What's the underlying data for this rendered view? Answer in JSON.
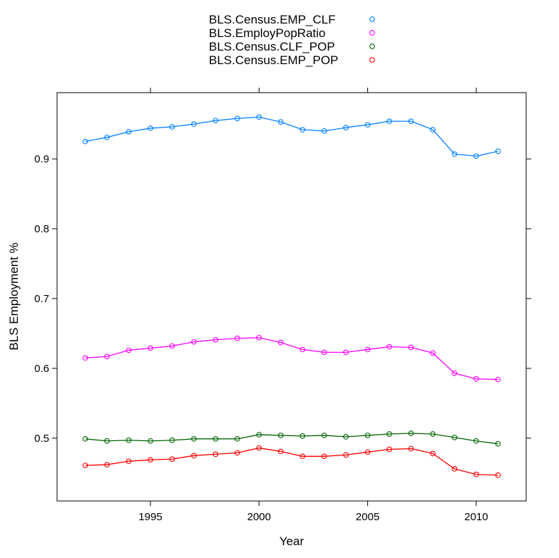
{
  "chart_data": {
    "type": "line",
    "title": "",
    "xlabel": "Year",
    "ylabel": "BLS Employment %",
    "xlim": [
      1990.7,
      2012.3
    ],
    "ylim": [
      0.41,
      0.995
    ],
    "x_ticks": [
      1995,
      2000,
      2005,
      2010
    ],
    "x_tick_labels": [
      "1995",
      "2000",
      "2005",
      "2010"
    ],
    "y_ticks": [
      0.5,
      0.6,
      0.7,
      0.8,
      0.9
    ],
    "y_tick_labels": [
      "0.5",
      "0.6",
      "0.7",
      "0.8",
      "0.9"
    ],
    "legend_position": "top-center",
    "x": [
      1992,
      1993,
      1994,
      1995,
      1996,
      1997,
      1998,
      1999,
      2000,
      2001,
      2002,
      2003,
      2004,
      2005,
      2006,
      2007,
      2008,
      2009,
      2010,
      2011
    ],
    "series": [
      {
        "name": "BLS.Census.EMP_CLF",
        "color": "#0080ff",
        "values": [
          0.925,
          0.931,
          0.939,
          0.944,
          0.946,
          0.95,
          0.955,
          0.958,
          0.96,
          0.953,
          0.942,
          0.94,
          0.945,
          0.949,
          0.954,
          0.954,
          0.942,
          0.907,
          0.904,
          0.911
        ]
      },
      {
        "name": "BLS.EmployPopRatio",
        "color": "#ff00ff",
        "values": [
          0.615,
          0.617,
          0.626,
          0.629,
          0.632,
          0.638,
          0.641,
          0.643,
          0.644,
          0.637,
          0.627,
          0.623,
          0.623,
          0.627,
          0.631,
          0.63,
          0.622,
          0.593,
          0.585,
          0.584
        ]
      },
      {
        "name": "BLS.Census.CLF_POP",
        "color": "#006400",
        "values": [
          0.499,
          0.496,
          0.497,
          0.496,
          0.497,
          0.499,
          0.499,
          0.499,
          0.505,
          0.504,
          0.503,
          0.504,
          0.502,
          0.504,
          0.506,
          0.507,
          0.506,
          0.501,
          0.496,
          0.492
        ]
      },
      {
        "name": "BLS.Census.EMP_POP",
        "color": "#ff0000",
        "values": [
          0.461,
          0.462,
          0.467,
          0.469,
          0.47,
          0.475,
          0.477,
          0.479,
          0.486,
          0.481,
          0.474,
          0.474,
          0.476,
          0.48,
          0.484,
          0.485,
          0.478,
          0.456,
          0.448,
          0.447
        ]
      }
    ]
  }
}
